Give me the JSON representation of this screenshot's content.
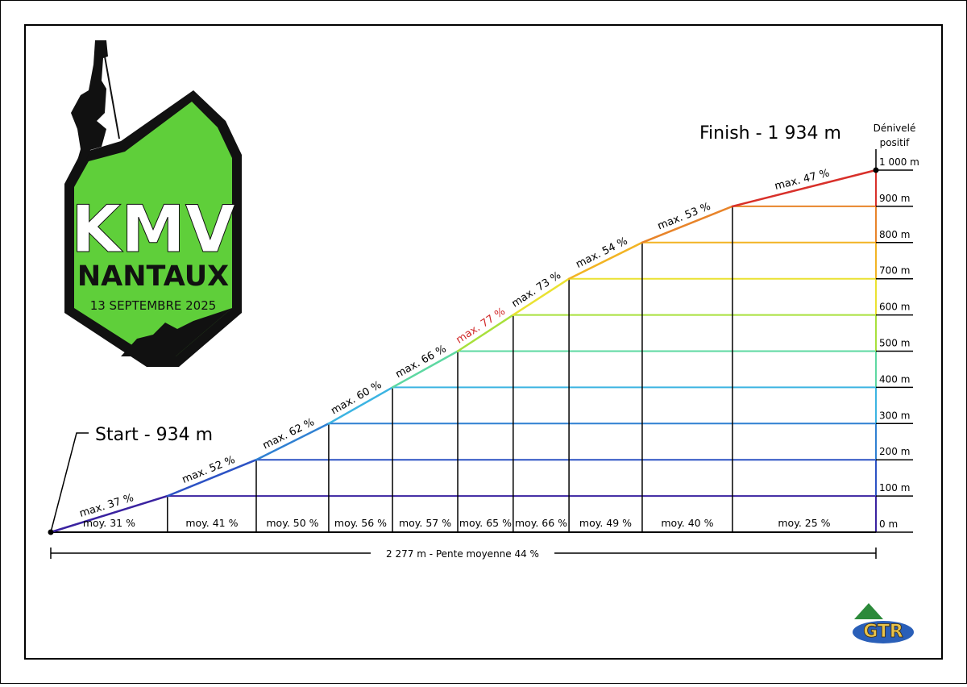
{
  "chart_data": {
    "type": "profile",
    "start_label": "Start - 934 m",
    "finish_label": "Finish - 1 934 m",
    "y_label": [
      "Dénivelé",
      "positif"
    ],
    "x_label": "2 277 m - Pente moyenne 44 %",
    "xlim": [
      0,
      2277
    ],
    "ylim": [
      0,
      1000
    ],
    "yticks": [
      {
        "value": 0,
        "label": "0 m"
      },
      {
        "value": 100,
        "label": "100 m"
      },
      {
        "value": 200,
        "label": "200 m"
      },
      {
        "value": 300,
        "label": "300 m"
      },
      {
        "value": 400,
        "label": "400 m"
      },
      {
        "value": 500,
        "label": "500 m"
      },
      {
        "value": 600,
        "label": "600 m"
      },
      {
        "value": 700,
        "label": "700 m"
      },
      {
        "value": 800,
        "label": "800 m"
      },
      {
        "value": 900,
        "label": "900 m"
      },
      {
        "value": 1000,
        "label": "1 000 m"
      }
    ],
    "series": [
      {
        "x": [
          0,
          322,
          567,
          767,
          943,
          1123,
          1276,
          1430,
          1632,
          1881,
          2277
        ],
        "values": [
          0,
          100,
          200,
          300,
          400,
          500,
          600,
          700,
          800,
          900,
          1000
        ],
        "colors": [
          "#3a22a0",
          "#2c52c4",
          "#2f80d2",
          "#3cb4e2",
          "#5ed8a2",
          "#a8e03c",
          "#eae232",
          "#f2b424",
          "#e8842a",
          "#d8302a"
        ],
        "max_labels": [
          "max. 37 %",
          "max. 52 %",
          "max. 62 %",
          "max. 60 %",
          "max. 66 %",
          "max. 77 %",
          "max. 73 %",
          "max. 54 %",
          "max. 53 %",
          "max. 47 %"
        ],
        "max_label_colors": [
          "#000000",
          "#000000",
          "#000000",
          "#000000",
          "#000000",
          "#d02828",
          "#000000",
          "#000000",
          "#000000",
          "#000000"
        ],
        "avg_labels": [
          "moy. 31 %",
          "moy. 41 %",
          "moy. 50 %",
          "moy. 56 %",
          "moy. 57 %",
          "moy. 65 %",
          "moy. 66 %",
          "moy. 49 %",
          "moy. 40 %",
          "moy. 25 %"
        ]
      }
    ]
  },
  "logo": {
    "title": "KMV",
    "subtitle": "NANTAUX",
    "date": "13 SEPTEMBRE 2025"
  },
  "brand": "GTR"
}
